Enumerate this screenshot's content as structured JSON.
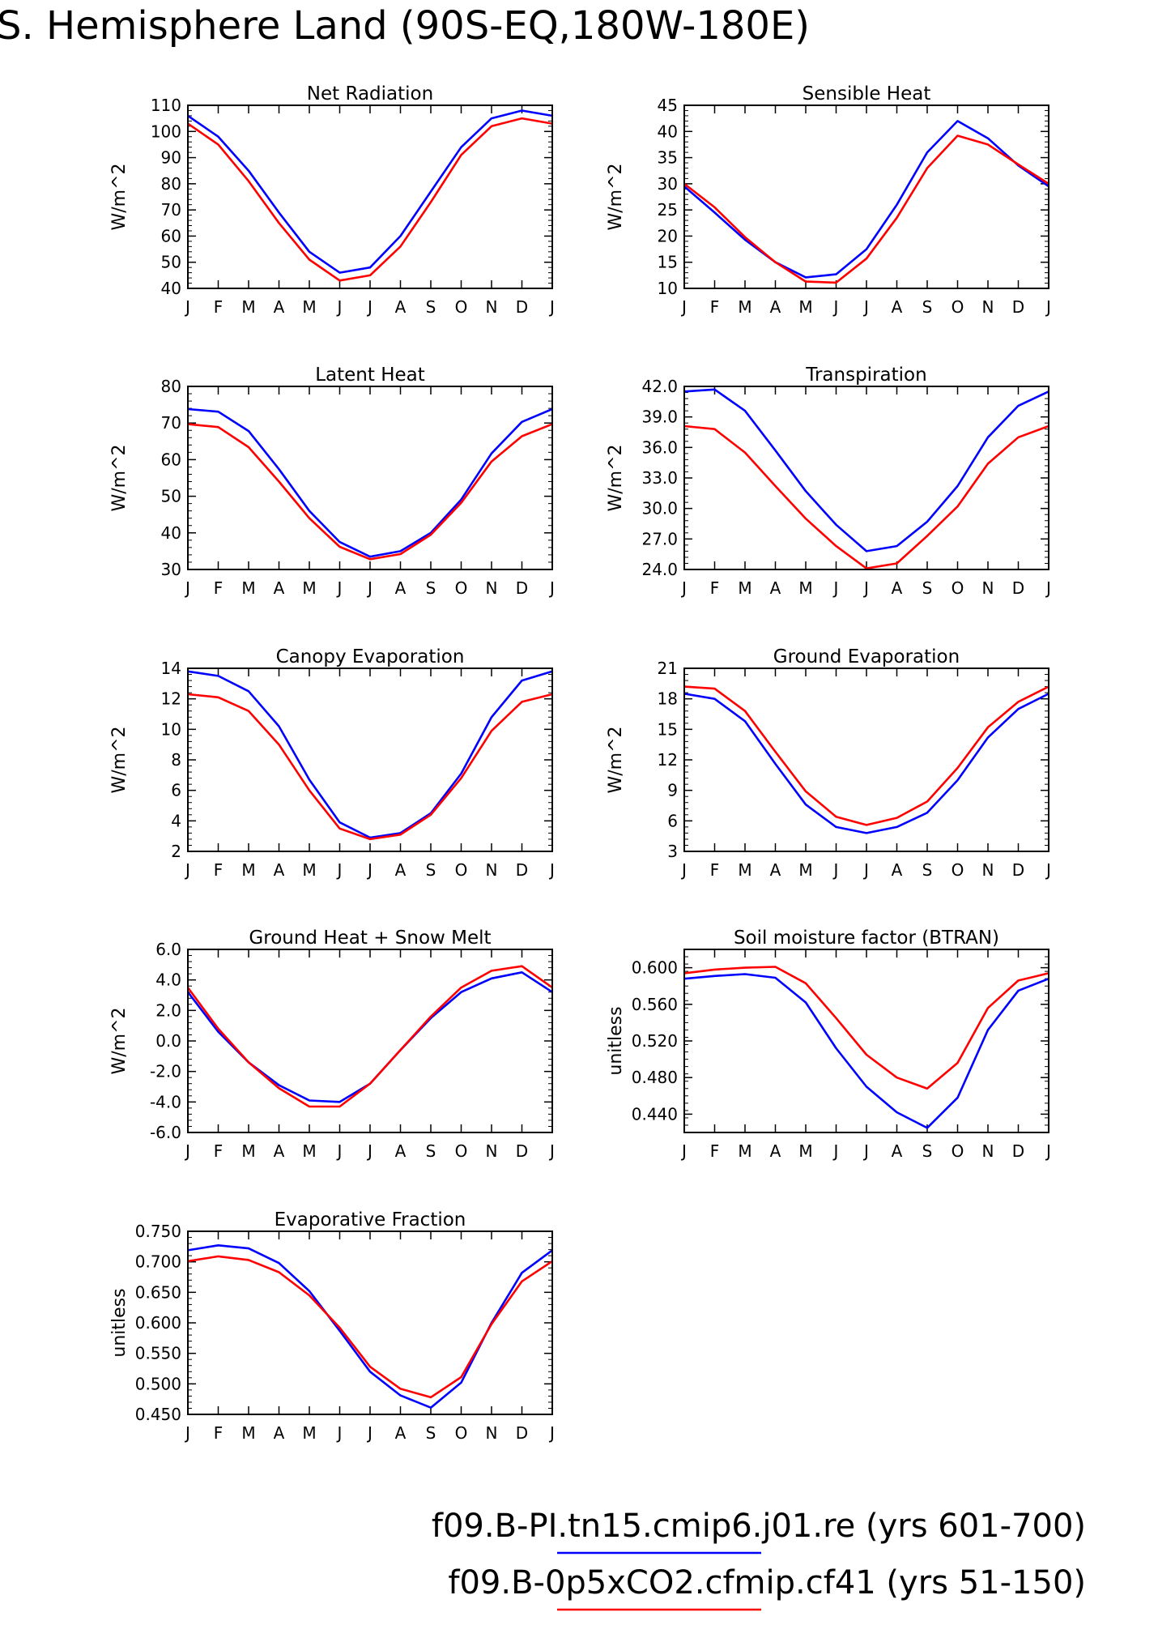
{
  "page": {
    "title": "S. Hemisphere Land (90S-EQ,180W-180E)"
  },
  "colors": {
    "series_1": "#0000ff",
    "series_2": "#ff0000"
  },
  "legend": [
    {
      "label": "f09.B-PI.tn15.cmip6.j01.re (yrs 601-700)",
      "color": "#0000ff"
    },
    {
      "label": "f09.B-0p5xCO2.cfmip.cf41 (yrs 51-150)",
      "color": "#ff0000"
    }
  ],
  "chart_data": [
    {
      "type": "line",
      "title": "Net Radiation",
      "ylabel": "W/m^2",
      "categories": [
        "J",
        "F",
        "M",
        "A",
        "M",
        "J",
        "J",
        "A",
        "S",
        "O",
        "N",
        "D",
        "J"
      ],
      "ylim": [
        40,
        110
      ],
      "yticks": [
        "40",
        "50",
        "60",
        "70",
        "80",
        "90",
        "100",
        "110"
      ],
      "series": [
        {
          "values": [
            106,
            98,
            85,
            69,
            54,
            46,
            48,
            60,
            77,
            94,
            105,
            108,
            106
          ],
          "color": "#0000ff"
        },
        {
          "values": [
            103,
            95,
            81,
            65,
            51,
            43,
            45,
            56,
            73,
            91,
            102,
            105,
            103
          ],
          "color": "#ff0000"
        }
      ]
    },
    {
      "type": "line",
      "title": "Sensible Heat",
      "ylabel": "W/m^2",
      "categories": [
        "J",
        "F",
        "M",
        "A",
        "M",
        "J",
        "J",
        "A",
        "S",
        "O",
        "N",
        "D",
        "J"
      ],
      "ylim": [
        10,
        45
      ],
      "yticks": [
        "10",
        "15",
        "20",
        "25",
        "30",
        "35",
        "40",
        "45"
      ],
      "series": [
        {
          "values": [
            29.5,
            24.5,
            19.3,
            15,
            12.1,
            12.7,
            17.5,
            26,
            36,
            42,
            38.7,
            33.5,
            29.5
          ],
          "color": "#0000ff"
        },
        {
          "values": [
            30,
            25.5,
            19.8,
            15,
            11.3,
            11.1,
            15.7,
            23.5,
            33,
            39.2,
            37.5,
            33.7,
            30
          ],
          "color": "#ff0000"
        }
      ]
    },
    {
      "type": "line",
      "title": "Latent Heat",
      "ylabel": "W/m^2",
      "categories": [
        "J",
        "F",
        "M",
        "A",
        "M",
        "J",
        "J",
        "A",
        "S",
        "O",
        "N",
        "D",
        "J"
      ],
      "ylim": [
        30,
        80
      ],
      "yticks": [
        "30",
        "40",
        "50",
        "60",
        "70",
        "80"
      ],
      "series": [
        {
          "values": [
            73.8,
            73.1,
            67.8,
            57.4,
            46,
            37.5,
            33.5,
            35,
            40,
            49.1,
            61.7,
            70.3,
            73.8
          ],
          "color": "#0000ff"
        },
        {
          "values": [
            69.7,
            68.9,
            63.4,
            54,
            44,
            36.2,
            32.8,
            34.2,
            39.5,
            48.2,
            59.5,
            66.4,
            69.7
          ],
          "color": "#ff0000"
        }
      ]
    },
    {
      "type": "line",
      "title": "Transpiration",
      "ylabel": "W/m^2",
      "categories": [
        "J",
        "F",
        "M",
        "A",
        "M",
        "J",
        "J",
        "A",
        "S",
        "O",
        "N",
        "D",
        "J"
      ],
      "ylim": [
        24.0,
        42.0
      ],
      "yticks": [
        "24.0",
        "27.0",
        "30.0",
        "33.0",
        "36.0",
        "39.0",
        "42.0"
      ],
      "series": [
        {
          "values": [
            41.5,
            41.7,
            39.6,
            35.7,
            31.7,
            28.4,
            25.8,
            26.3,
            28.7,
            32.2,
            37,
            40.1,
            41.5
          ],
          "color": "#0000ff"
        },
        {
          "values": [
            38.1,
            37.8,
            35.5,
            32.2,
            29,
            26.3,
            24.1,
            24.6,
            27.3,
            30.2,
            34.4,
            37,
            38.1
          ],
          "color": "#ff0000"
        }
      ]
    },
    {
      "type": "line",
      "title": "Canopy Evaporation",
      "ylabel": "W/m^2",
      "categories": [
        "J",
        "F",
        "M",
        "A",
        "M",
        "J",
        "J",
        "A",
        "S",
        "O",
        "N",
        "D",
        "J"
      ],
      "ylim": [
        2,
        14
      ],
      "yticks": [
        "2",
        "4",
        "6",
        "8",
        "10",
        "12",
        "14"
      ],
      "series": [
        {
          "values": [
            13.8,
            13.5,
            12.5,
            10.2,
            6.7,
            3.9,
            2.9,
            3.2,
            4.5,
            7.1,
            10.8,
            13.2,
            13.8
          ],
          "color": "#0000ff"
        },
        {
          "values": [
            12.3,
            12.1,
            11.2,
            9,
            6,
            3.5,
            2.8,
            3.1,
            4.4,
            6.8,
            9.9,
            11.8,
            12.3
          ],
          "color": "#ff0000"
        }
      ]
    },
    {
      "type": "line",
      "title": "Ground Evaporation",
      "ylabel": "W/m^2",
      "categories": [
        "J",
        "F",
        "M",
        "A",
        "M",
        "J",
        "J",
        "A",
        "S",
        "O",
        "N",
        "D",
        "J"
      ],
      "ylim": [
        3,
        21
      ],
      "yticks": [
        "3",
        "6",
        "9",
        "12",
        "15",
        "18",
        "21"
      ],
      "series": [
        {
          "values": [
            18.5,
            18,
            15.8,
            11.6,
            7.6,
            5.4,
            4.8,
            5.4,
            6.8,
            10,
            14.2,
            17,
            18.5
          ],
          "color": "#0000ff"
        },
        {
          "values": [
            19.2,
            19,
            16.8,
            12.8,
            8.9,
            6.4,
            5.6,
            6.3,
            7.9,
            11.2,
            15.2,
            17.7,
            19.2
          ],
          "color": "#ff0000"
        }
      ]
    },
    {
      "type": "line",
      "title": "Ground Heat + Snow Melt",
      "ylabel": "W/m^2",
      "categories": [
        "J",
        "F",
        "M",
        "A",
        "M",
        "J",
        "J",
        "A",
        "S",
        "O",
        "N",
        "D",
        "J"
      ],
      "ylim": [
        -6.0,
        6.0
      ],
      "yticks": [
        "-6.0",
        "-4.0",
        "-2.0",
        "0.0",
        "2.0",
        "4.0",
        "6.0"
      ],
      "series": [
        {
          "values": [
            3.2,
            0.6,
            -1.4,
            -2.9,
            -3.9,
            -4,
            -2.8,
            -0.6,
            1.5,
            3.2,
            4.1,
            4.5,
            3.2
          ],
          "color": "#0000ff"
        },
        {
          "values": [
            3.5,
            0.8,
            -1.4,
            -3.1,
            -4.3,
            -4.3,
            -2.8,
            -0.6,
            1.6,
            3.5,
            4.6,
            4.9,
            3.5
          ],
          "color": "#ff0000"
        }
      ]
    },
    {
      "type": "line",
      "title": "Soil moisture factor (BTRAN)",
      "ylabel": "unitless",
      "categories": [
        "J",
        "F",
        "M",
        "A",
        "M",
        "J",
        "J",
        "A",
        "S",
        "O",
        "N",
        "D",
        "J"
      ],
      "ylim": [
        0.42,
        0.62
      ],
      "yticks": [
        "0.440",
        "0.480",
        "0.520",
        "0.560",
        "0.600"
      ],
      "yticks_values": [
        0.44,
        0.48,
        0.52,
        0.56,
        0.6
      ],
      "series": [
        {
          "values": [
            0.588,
            0.591,
            0.593,
            0.589,
            0.562,
            0.512,
            0.47,
            0.442,
            0.425,
            0.458,
            0.532,
            0.575,
            0.588
          ],
          "color": "#0000ff"
        },
        {
          "values": [
            0.594,
            0.598,
            0.6,
            0.601,
            0.583,
            0.545,
            0.505,
            0.48,
            0.468,
            0.496,
            0.556,
            0.586,
            0.594
          ],
          "color": "#ff0000"
        }
      ]
    },
    {
      "type": "line",
      "title": "Evaporative Fraction",
      "ylabel": "unitless",
      "categories": [
        "J",
        "F",
        "M",
        "A",
        "M",
        "J",
        "J",
        "A",
        "S",
        "O",
        "N",
        "D",
        "J"
      ],
      "ylim": [
        0.45,
        0.75
      ],
      "yticks": [
        "0.450",
        "0.500",
        "0.550",
        "0.600",
        "0.650",
        "0.700",
        "0.750"
      ],
      "series": [
        {
          "values": [
            0.719,
            0.727,
            0.722,
            0.698,
            0.652,
            0.587,
            0.52,
            0.481,
            0.461,
            0.502,
            0.6,
            0.682,
            0.719
          ],
          "color": "#0000ff"
        },
        {
          "values": [
            0.701,
            0.709,
            0.703,
            0.683,
            0.645,
            0.592,
            0.528,
            0.492,
            0.478,
            0.511,
            0.598,
            0.668,
            0.701
          ],
          "color": "#ff0000"
        }
      ]
    }
  ]
}
